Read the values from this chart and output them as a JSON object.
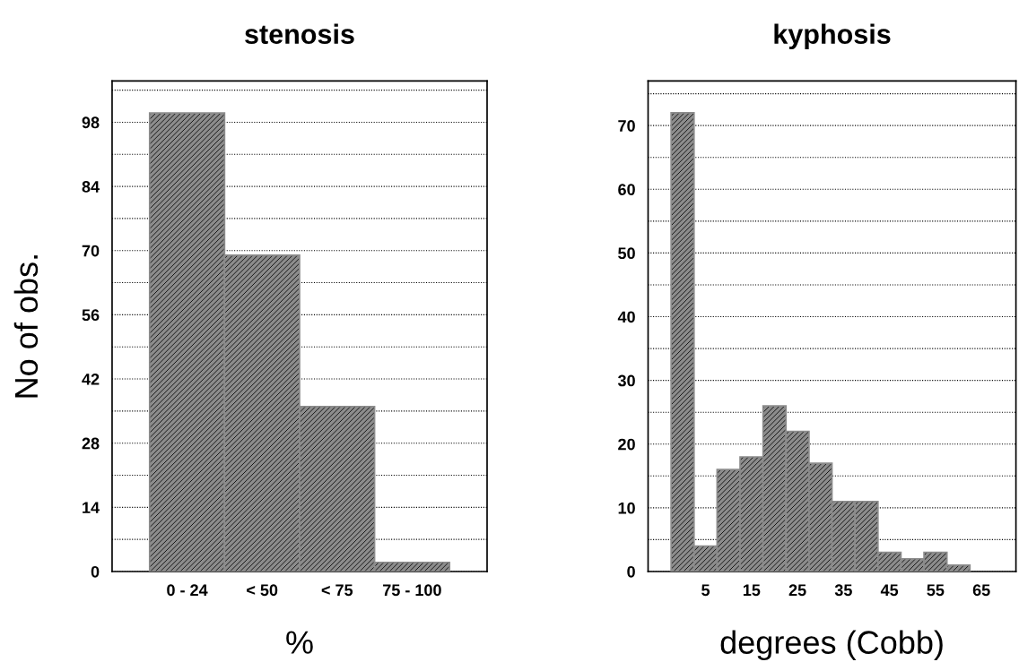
{
  "chart_data": [
    {
      "type": "bar",
      "title": "stenosis",
      "xlabel": "%",
      "ylabel": "No of obs.",
      "categories": [
        "0 - 24",
        "< 50",
        "< 75",
        "75 - 100"
      ],
      "values": [
        100,
        69,
        36,
        2
      ],
      "color": "#8c8c8c",
      "ylim": [
        0,
        107
      ],
      "yticks": [
        0,
        {
          "value": 7,
          "label": null
        },
        14,
        {
          "value": 21,
          "label": null
        },
        28,
        {
          "value": 35,
          "label": null
        },
        42,
        {
          "value": 49,
          "label": null
        },
        56,
        {
          "value": 63,
          "label": null
        },
        70,
        {
          "value": 77,
          "label": null
        },
        84,
        {
          "value": 91,
          "label": null
        },
        98,
        {
          "value": 105,
          "label": null
        }
      ],
      "grid": "y"
    },
    {
      "type": "bar",
      "title": "kyphosis",
      "xlabel": "degrees (Cobb)",
      "x": [
        0,
        5,
        10,
        15,
        20,
        25,
        30,
        35,
        40,
        45,
        50,
        55,
        60
      ],
      "values": [
        72,
        4,
        16,
        18,
        26,
        22,
        17,
        11,
        11,
        3,
        2,
        3,
        1
      ],
      "color": "#8c8c8c",
      "xlim": [
        -7.5,
        72.5
      ],
      "xticks": [
        5,
        15,
        25,
        35,
        45,
        55,
        65
      ],
      "ylim": [
        0,
        77
      ],
      "yticks": [
        0,
        {
          "value": 5,
          "label": null
        },
        10,
        {
          "value": 15,
          "label": null
        },
        20,
        {
          "value": 25,
          "label": null
        },
        30,
        {
          "value": 35,
          "label": null
        },
        40,
        {
          "value": 45,
          "label": null
        },
        50,
        {
          "value": 55,
          "label": null
        },
        60,
        {
          "value": 65,
          "label": null
        },
        70,
        {
          "value": 75,
          "label": null
        }
      ],
      "grid": "y"
    }
  ]
}
